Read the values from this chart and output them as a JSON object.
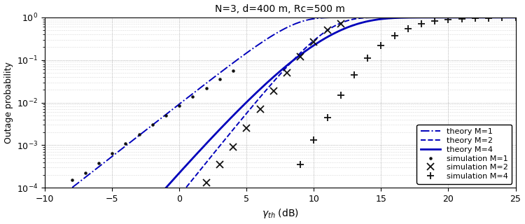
{
  "title": "N=3, d=400 m, Rc=500 m",
  "xlabel": "$\\gamma_{th}$ (dB)",
  "ylabel": "Outage probability",
  "xlim": [
    -10,
    25
  ],
  "ylim_log": [
    0.0001,
    1.0
  ],
  "background_color": "#ffffff",
  "theory_color": "#0000bb",
  "sim_color": "#111111",
  "legend_labels": [
    "theory M=1",
    "theory M=2",
    "theory M=4",
    "simulation M=1",
    "simulation M=2",
    "simulation M=4"
  ],
  "M1_sim_x": [
    -8,
    -7,
    -6,
    -5,
    -4,
    -3,
    -2,
    -1,
    0,
    1,
    2,
    3,
    4
  ],
  "M1_sim_y": [
    0.00015,
    0.00022,
    0.00038,
    0.00065,
    0.0011,
    0.0018,
    0.003,
    0.005,
    0.0085,
    0.014,
    0.022,
    0.035,
    0.055
  ],
  "M2_sim_x": [
    2,
    3,
    4,
    5,
    6,
    7,
    8,
    9,
    10,
    11,
    12
  ],
  "M2_sim_y": [
    0.00013,
    0.00035,
    0.0009,
    0.0025,
    0.007,
    0.019,
    0.05,
    0.12,
    0.26,
    0.5,
    0.72
  ],
  "M4_sim_x": [
    9,
    10,
    11,
    12,
    13,
    14,
    15,
    16,
    17,
    18,
    19,
    20,
    21,
    22,
    23,
    24,
    25
  ],
  "M4_sim_y": [
    0.00035,
    0.0013,
    0.0045,
    0.015,
    0.045,
    0.11,
    0.22,
    0.37,
    0.55,
    0.7,
    0.81,
    0.89,
    0.94,
    0.96,
    0.97,
    0.98,
    0.99
  ],
  "M1_mu": 1.0,
  "M1_shift": -2.0,
  "M2_mu": 2.0,
  "M2_shift": 3.5,
  "M4_mu": 4.0,
  "M4_shift": 11.5,
  "M4_scale": 3.5
}
